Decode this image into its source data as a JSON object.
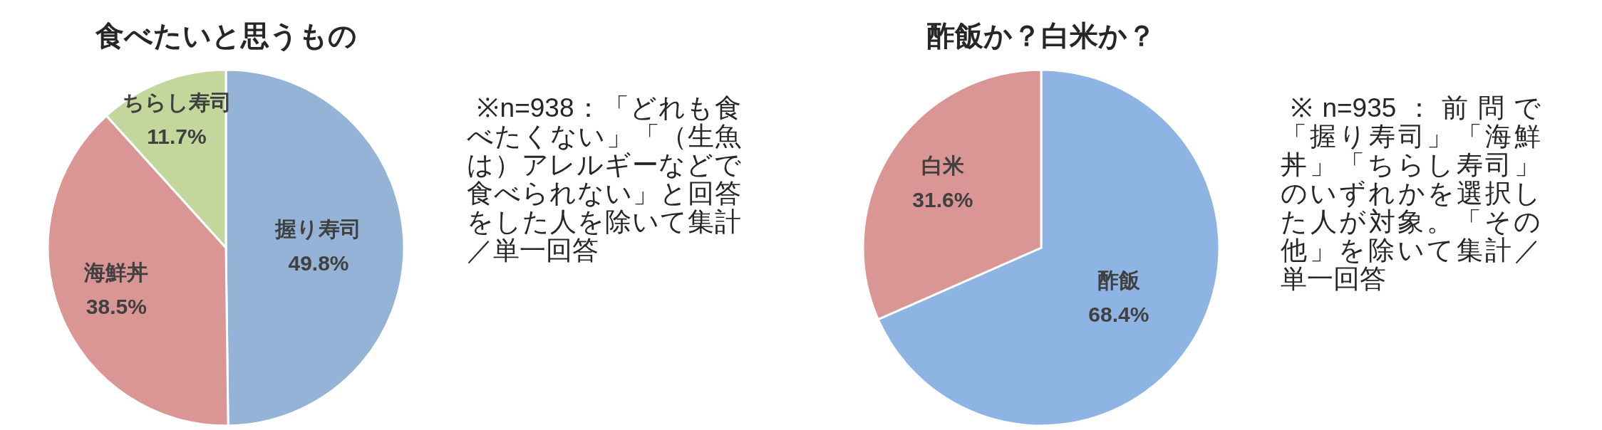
{
  "chart_data": [
    {
      "type": "pie",
      "title": "食べたいと思うもの",
      "categories": [
        "握り寿司",
        "海鮮丼",
        "ちらし寿司"
      ],
      "values": [
        49.8,
        38.5,
        11.7
      ],
      "colors": [
        "#95b3d7",
        "#d99694",
        "#c3d69b"
      ],
      "value_labels": [
        "49.8%",
        "38.5%",
        "11.7%"
      ],
      "annotations": [
        "※n=938：「どれも食べたくない」「（生魚は）アレルギーなどで食べられない」と回答をした人を除いて集計／単一回答"
      ]
    },
    {
      "type": "pie",
      "title": "酢飯か？白米か？",
      "categories": [
        "酢飯",
        "白米"
      ],
      "values": [
        68.4,
        31.6
      ],
      "colors": [
        "#8eb4e3",
        "#d99694"
      ],
      "value_labels": [
        "68.4%",
        "31.6%"
      ],
      "annotations": [
        "※n=935：前問で「握り寿司」「海鮮丼」「ちらし寿司」のいずれかを選択した人が対象。「その他」を除いて集計／単一回答"
      ]
    }
  ]
}
